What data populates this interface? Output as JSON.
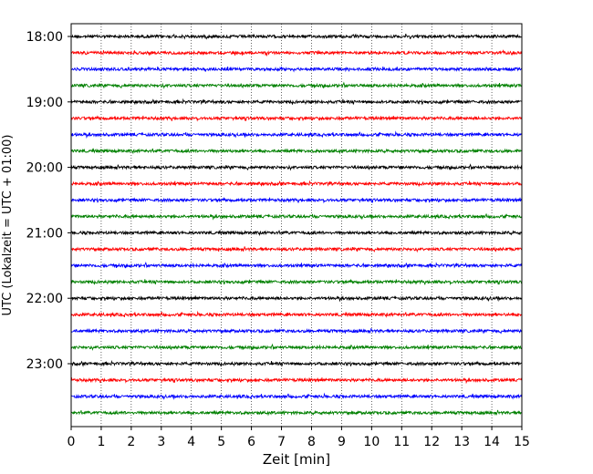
{
  "chart_data": {
    "type": "line",
    "xlabel": "Zeit  [min]",
    "ylabel": "UTC (Lokalzeit = UTC + 01:00)",
    "xlim": [
      0,
      15
    ],
    "x_ticks": [
      "0",
      "1",
      "2",
      "3",
      "4",
      "5",
      "6",
      "7",
      "8",
      "9",
      "10",
      "11",
      "12",
      "13",
      "14",
      "15"
    ],
    "y_ticks": [
      "18:00",
      "19:00",
      "20:00",
      "21:00",
      "22:00",
      "23:00"
    ],
    "grid": "vertical dotted lines at each minute",
    "color_cycle": [
      "#000000",
      "#ff0000",
      "#0000ff",
      "#008000"
    ],
    "series": [
      {
        "start_time": "18:00",
        "color": "#000000"
      },
      {
        "start_time": "18:15",
        "color": "#ff0000"
      },
      {
        "start_time": "18:30",
        "color": "#0000ff"
      },
      {
        "start_time": "18:45",
        "color": "#008000"
      },
      {
        "start_time": "19:00",
        "color": "#000000"
      },
      {
        "start_time": "19:15",
        "color": "#ff0000"
      },
      {
        "start_time": "19:30",
        "color": "#0000ff"
      },
      {
        "start_time": "19:45",
        "color": "#008000"
      },
      {
        "start_time": "20:00",
        "color": "#000000"
      },
      {
        "start_time": "20:15",
        "color": "#ff0000"
      },
      {
        "start_time": "20:30",
        "color": "#0000ff"
      },
      {
        "start_time": "20:45",
        "color": "#008000"
      },
      {
        "start_time": "21:00",
        "color": "#000000"
      },
      {
        "start_time": "21:15",
        "color": "#ff0000"
      },
      {
        "start_time": "21:30",
        "color": "#0000ff"
      },
      {
        "start_time": "21:45",
        "color": "#008000"
      },
      {
        "start_time": "22:00",
        "color": "#000000"
      },
      {
        "start_time": "22:15",
        "color": "#ff0000"
      },
      {
        "start_time": "22:30",
        "color": "#0000ff"
      },
      {
        "start_time": "22:45",
        "color": "#008000"
      },
      {
        "start_time": "23:00",
        "color": "#000000"
      },
      {
        "start_time": "23:15",
        "color": "#ff0000"
      },
      {
        "start_time": "23:30",
        "color": "#0000ff"
      },
      {
        "start_time": "23:45",
        "color": "#008000"
      }
    ]
  }
}
